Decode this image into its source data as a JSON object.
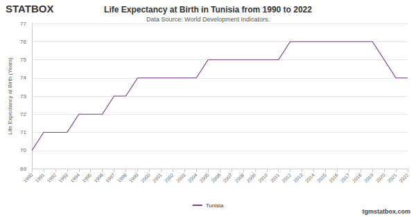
{
  "logo_text": "STATBOX",
  "footer_text": "tgmstatbox.com",
  "chart_data": {
    "type": "line",
    "title": "Life Expectancy at Birth in Tunisia from 1990 to 2022",
    "subtitle": "Data Source: World Development Indicators.",
    "y_label": "Life Expectancy at Birth (Years)",
    "categories": [
      "1990",
      "1991",
      "1992",
      "1993",
      "1994",
      "1995",
      "1996",
      "1997",
      "1998",
      "1999",
      "2000",
      "2001",
      "2002",
      "2003",
      "2004",
      "2005",
      "2006",
      "2007",
      "2008",
      "2009",
      "2010",
      "2011",
      "2012",
      "2013",
      "2014",
      "2015",
      "2016",
      "2017",
      "2018",
      "2019",
      "2020",
      "2021",
      "2022"
    ],
    "series": [
      {
        "name": "Tunisia",
        "color": "#7b3f8c",
        "values": [
          70,
          71,
          71,
          71,
          72,
          72,
          72,
          73,
          73,
          74,
          74,
          74,
          74,
          74,
          74,
          75,
          75,
          75,
          75,
          75,
          75,
          75,
          76,
          76,
          76,
          76,
          76,
          76,
          76,
          76,
          75,
          74,
          74
        ]
      }
    ],
    "ylim": [
      69,
      77
    ],
    "yticks": [
      69,
      70,
      71,
      72,
      73,
      74,
      75,
      76,
      77
    ],
    "grid": true,
    "legend": "bottom"
  }
}
